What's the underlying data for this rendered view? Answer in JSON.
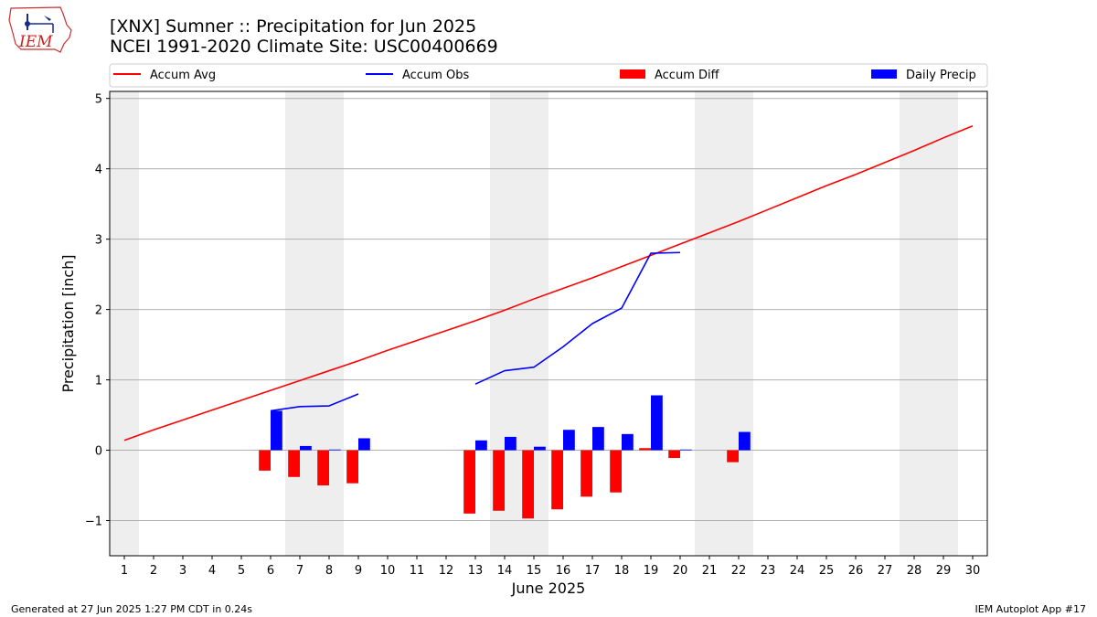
{
  "header": {
    "logo_text": "IEM",
    "title_line1": "[XNX] Sumner :: Precipitation for Jun 2025",
    "title_line2": "NCEI 1991-2020 Climate Site: USC00400669"
  },
  "footer": {
    "generated": "Generated at 27 Jun 2025 1:27 PM CDT in 0.24s",
    "app": "IEM Autoplot App #17"
  },
  "colors": {
    "avg": "#ff0000",
    "obs": "#0000ff",
    "diff": "#ff0000",
    "daily": "#0000ff",
    "weekend_shade": "#eeeeee",
    "grid": "#b0b0b0"
  },
  "chart_data": {
    "type": "bar",
    "xlabel": "June 2025",
    "ylabel": "Precipitation [inch]",
    "xlim": [
      0.5,
      30.5
    ],
    "ylim": [
      -1.5,
      5.1
    ],
    "yticks": [
      -1,
      0,
      1,
      2,
      3,
      4,
      5
    ],
    "ytick_labels": [
      "−1",
      "0",
      "1",
      "2",
      "3",
      "4",
      "5"
    ],
    "grid": "horizontal",
    "legend": "top",
    "legend_entries": [
      "Accum Avg",
      "Accum Obs",
      "Accum Diff",
      "Daily Precip"
    ],
    "x": [
      1,
      2,
      3,
      4,
      5,
      6,
      7,
      8,
      9,
      10,
      11,
      12,
      13,
      14,
      15,
      16,
      17,
      18,
      19,
      20,
      21,
      22,
      23,
      24,
      25,
      26,
      27,
      28,
      29,
      30
    ],
    "x_labels": [
      "1",
      "2",
      "3",
      "4",
      "5",
      "6",
      "7",
      "8",
      "9",
      "10",
      "11",
      "12",
      "13",
      "14",
      "15",
      "16",
      "17",
      "18",
      "19",
      "20",
      "21",
      "22",
      "23",
      "24",
      "25",
      "26",
      "27",
      "28",
      "29",
      "30"
    ],
    "weekend_days": [
      1,
      7,
      8,
      14,
      15,
      21,
      22,
      28,
      29
    ],
    "series": [
      {
        "name": "Accum Avg",
        "kind": "line",
        "values": [
          0.14,
          0.29,
          0.43,
          0.57,
          0.71,
          0.85,
          0.99,
          1.13,
          1.27,
          1.42,
          1.56,
          1.7,
          1.84,
          1.99,
          2.15,
          2.3,
          2.45,
          2.61,
          2.77,
          2.93,
          3.09,
          3.25,
          3.42,
          3.59,
          3.76,
          3.92,
          4.09,
          4.26,
          4.44,
          4.61
        ]
      },
      {
        "name": "Accum Obs",
        "kind": "line",
        "values": [
          null,
          null,
          null,
          null,
          null,
          0.56,
          0.62,
          0.63,
          0.8,
          null,
          null,
          null,
          0.94,
          1.13,
          1.18,
          1.47,
          1.8,
          2.02,
          2.8,
          2.81,
          null,
          null,
          null,
          null,
          null,
          null,
          null,
          null,
          null,
          null
        ]
      },
      {
        "name": "Accum Diff",
        "kind": "bar",
        "values": [
          null,
          null,
          null,
          null,
          null,
          -0.29,
          -0.38,
          -0.5,
          -0.47,
          null,
          null,
          null,
          -0.9,
          -0.86,
          -0.97,
          -0.84,
          -0.66,
          -0.6,
          0.03,
          -0.11,
          null,
          -0.17,
          null,
          null,
          null,
          null,
          null,
          null,
          null,
          null
        ]
      },
      {
        "name": "Daily Precip",
        "kind": "bar",
        "values": [
          null,
          null,
          null,
          null,
          null,
          0.56,
          0.06,
          0.01,
          0.17,
          null,
          null,
          null,
          0.14,
          0.19,
          0.05,
          0.29,
          0.33,
          0.23,
          0.78,
          0.01,
          null,
          0.26,
          null,
          null,
          null,
          null,
          null,
          null,
          null,
          null
        ]
      }
    ]
  }
}
